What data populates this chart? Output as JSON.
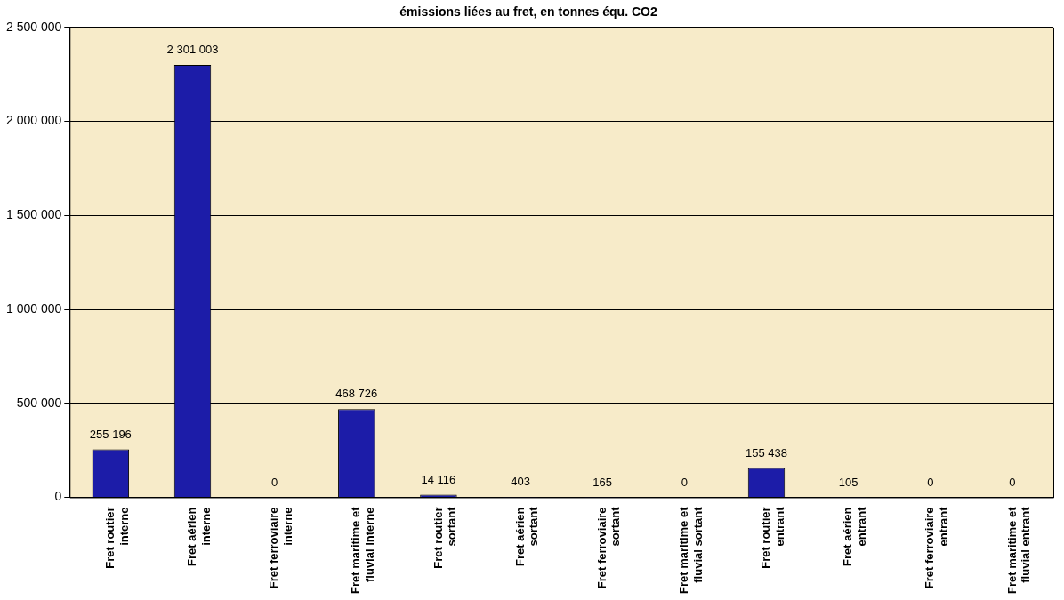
{
  "chart_data": {
    "type": "bar",
    "title": "émissions liées au fret, en tonnes équ. CO2",
    "categories": [
      "Fret routier interne",
      "Fret aérien interne",
      "Fret ferroviaire interne",
      "Fret maritime et fluvial interne",
      "Fret routier sortant",
      "Fret aérien sortant",
      "Fret ferroviaire sortant",
      "Fret maritime et fluvial sortant",
      "Fret routier entrant",
      "Fret aérien entrant",
      "Fret ferroviaire entrant",
      "Fret maritime et fluvial entrant"
    ],
    "values": [
      255196,
      2301003,
      0,
      468726,
      14116,
      403,
      165,
      0,
      155438,
      105,
      0,
      0
    ],
    "value_labels": [
      "255 196",
      "2 301 003",
      "0",
      "468 726",
      "14 116",
      "403",
      "165",
      "0",
      "155 438",
      "105",
      "0",
      "0"
    ],
    "color": "#1c1ca8",
    "ylim": [
      0,
      2500000
    ],
    "yticks": [
      {
        "value": 0,
        "label": "0"
      },
      {
        "value": 500000,
        "label": "500 000"
      },
      {
        "value": 1000000,
        "label": "1 000 000"
      },
      {
        "value": 1500000,
        "label": "1 500 000"
      },
      {
        "value": 2000000,
        "label": "2 000 000"
      },
      {
        "value": 2500000,
        "label": "2 500 000"
      }
    ],
    "grid": "y",
    "legend": false
  }
}
